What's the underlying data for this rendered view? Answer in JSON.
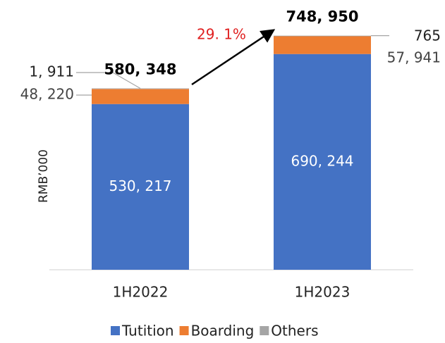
{
  "chart_data": {
    "type": "stacked_bar",
    "ylabel": "RMB’000",
    "categories": [
      "1H2022",
      "1H2023"
    ],
    "series": [
      {
        "name": "Tutition",
        "color": "#4472c4",
        "values": [
          530217,
          690244
        ],
        "value_labels": [
          "530, 217",
          "690, 244"
        ]
      },
      {
        "name": "Boarding",
        "color": "#ed7d31",
        "values": [
          48220,
          57941
        ],
        "value_labels": [
          "48, 220",
          "57, 941"
        ]
      },
      {
        "name": "Others",
        "color": "#a5a5a5",
        "values": [
          1911,
          765
        ],
        "value_labels": [
          "1, 911",
          "765"
        ]
      }
    ],
    "totals": [
      580348,
      748950
    ],
    "total_labels": [
      "580, 348",
      "748, 950"
    ],
    "annotation": "29. 1%",
    "ylim": [
      0,
      800000
    ]
  }
}
